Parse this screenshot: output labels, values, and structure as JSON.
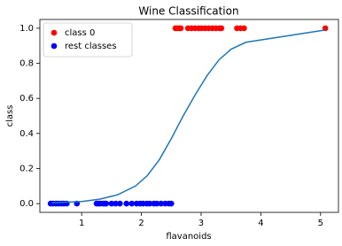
{
  "chart_data": {
    "type": "scatter",
    "title": "Wine Classification",
    "x_label": "flavanoids",
    "y_label": "class",
    "xlim": [
      0.3,
      5.3
    ],
    "ylim": [
      -0.05,
      1.05
    ],
    "xticks": [
      1,
      2,
      3,
      4,
      5
    ],
    "yticks": [
      {
        "value": 0,
        "label": "0.0"
      },
      {
        "value": 0.2,
        "label": "0.2"
      },
      {
        "value": 0.4,
        "label": "0.4"
      },
      {
        "value": 0.6,
        "label": "0.6"
      },
      {
        "value": 0.8,
        "label": "0.8"
      },
      {
        "value": 1,
        "label": "1.0"
      }
    ],
    "grid": false,
    "legend": "upper left",
    "series": [
      {
        "name": "class 0",
        "type": "scatter",
        "color": "#ff0000",
        "x": [
          2.57,
          2.6,
          2.63,
          2.66,
          2.78,
          2.84,
          2.9,
          2.96,
          3.01,
          3.07,
          3.13,
          3.19,
          3.25,
          3.31,
          3.34,
          3.6,
          3.66,
          3.72,
          5.08
        ],
        "values": [
          1,
          1,
          1,
          1,
          1,
          1,
          1,
          1,
          1,
          1,
          1,
          1,
          1,
          1,
          1,
          1,
          1,
          1,
          1
        ]
      },
      {
        "name": "rest classes",
        "type": "scatter",
        "color": "#0000ff",
        "x": [
          0.48,
          0.52,
          0.57,
          0.61,
          0.66,
          0.7,
          0.75,
          0.92,
          1.25,
          1.28,
          1.31,
          1.36,
          1.39,
          1.41,
          1.5,
          1.57,
          1.64,
          1.75,
          1.84,
          1.92,
          1.98,
          2.03,
          2.09,
          2.14,
          2.21,
          2.26,
          2.33,
          2.4,
          2.46,
          2.5
        ],
        "values": [
          0,
          0,
          0,
          0,
          0,
          0,
          0,
          0,
          0,
          0,
          0,
          0,
          0,
          0,
          0,
          0,
          0,
          0,
          0,
          0,
          0,
          0,
          0,
          0,
          0,
          0,
          0,
          0,
          0,
          0
        ]
      },
      {
        "type": "line",
        "color": "#1f77b4",
        "x": [
          0.5,
          1.0,
          1.3,
          1.6,
          1.9,
          2.1,
          2.3,
          2.5,
          2.7,
          2.9,
          3.1,
          3.3,
          3.5,
          3.75,
          5.08
        ],
        "values": [
          0.005,
          0.012,
          0.025,
          0.05,
          0.1,
          0.16,
          0.25,
          0.37,
          0.5,
          0.62,
          0.73,
          0.82,
          0.88,
          0.92,
          0.99
        ]
      }
    ]
  }
}
